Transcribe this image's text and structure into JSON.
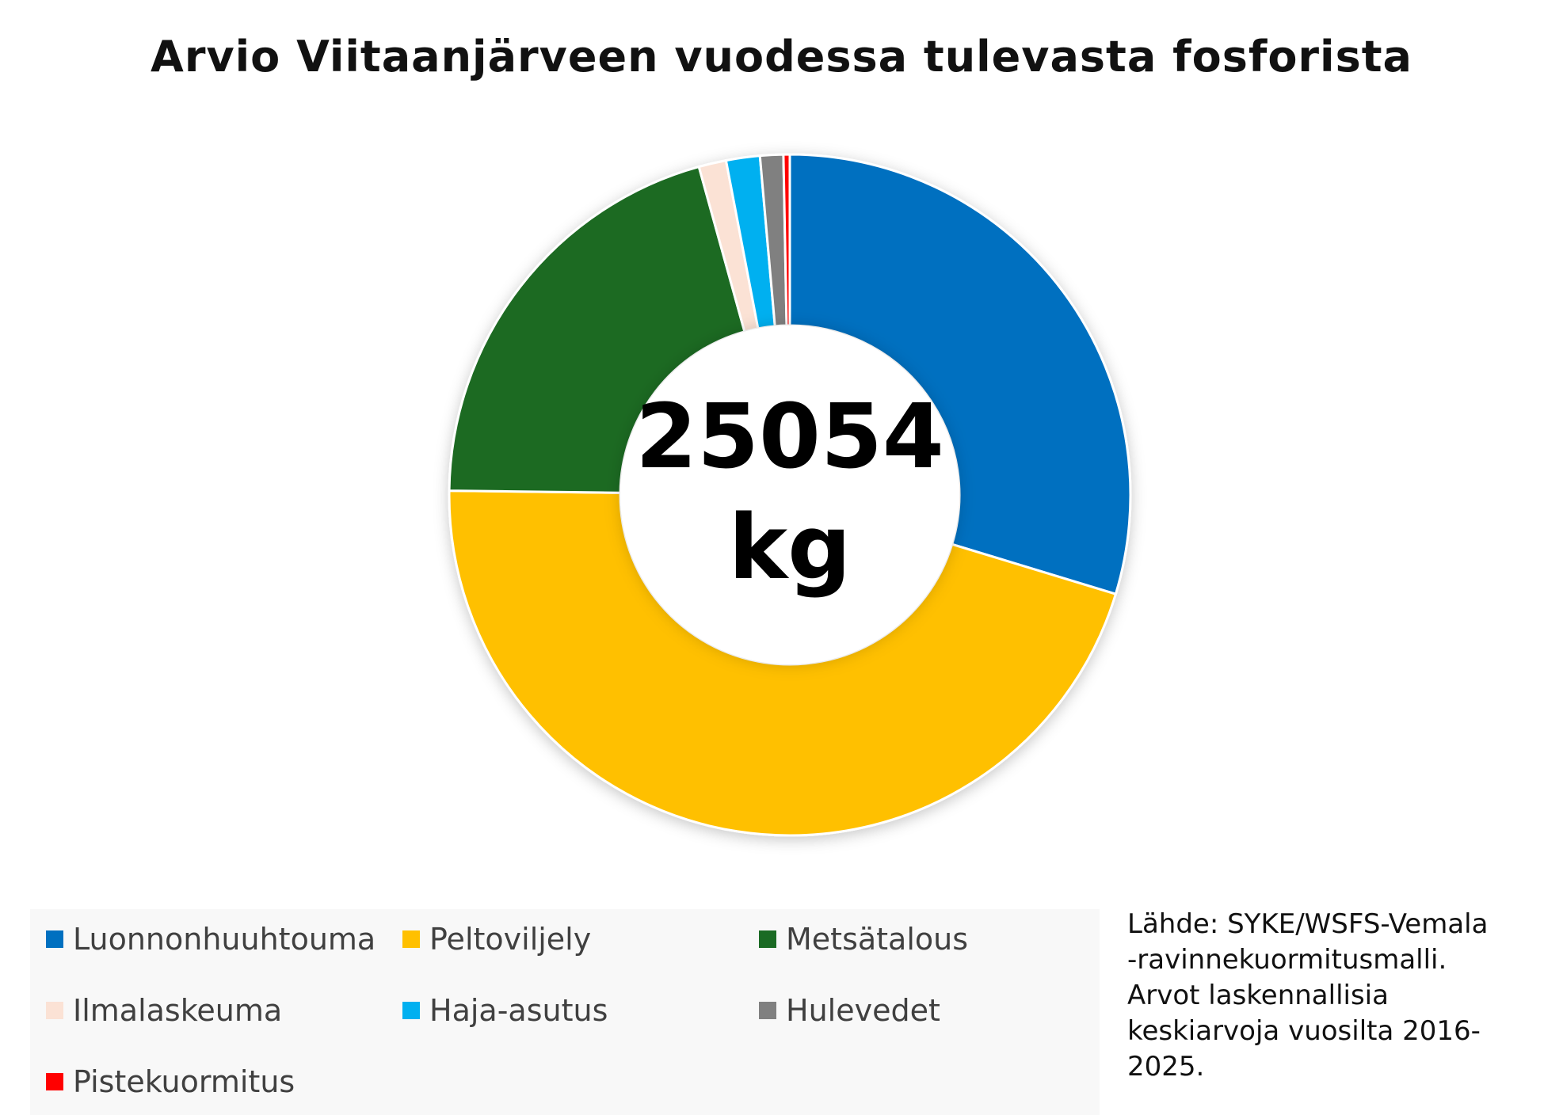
{
  "chart_data": {
    "type": "pie",
    "variant": "donut",
    "title": "Arvio Viitaanjärveen vuodessa tulevasta fosforista",
    "center_label": [
      "25054",
      "kg"
    ],
    "categories": [
      "Luonnonhuuhtouma",
      "Peltoviljely",
      "Metsätalous",
      "Ilmalaskeuma",
      "Haja-asutus",
      "Hulevedet",
      "Pistekuormitus"
    ],
    "values": [
      0.297,
      0.455,
      0.205,
      0.013,
      0.016,
      0.011,
      0.003
    ],
    "value_unit": "share of total",
    "colors": [
      "#0070C0",
      "#FFC000",
      "#1B6B24",
      "#FBE2D5",
      "#00B0F0",
      "#808080",
      "#FF0000"
    ],
    "legend": "bottom-left, 3 columns",
    "start": "12 o'clock, clockwise"
  },
  "source_note": {
    "lines": [
      "Lähde: SYKE/WSFS-Vemala",
      "-ravinnekuormitusmalli.",
      "Arvot laskennallisia",
      "keskiarvoja vuosilta 2016-",
      "2025."
    ]
  }
}
